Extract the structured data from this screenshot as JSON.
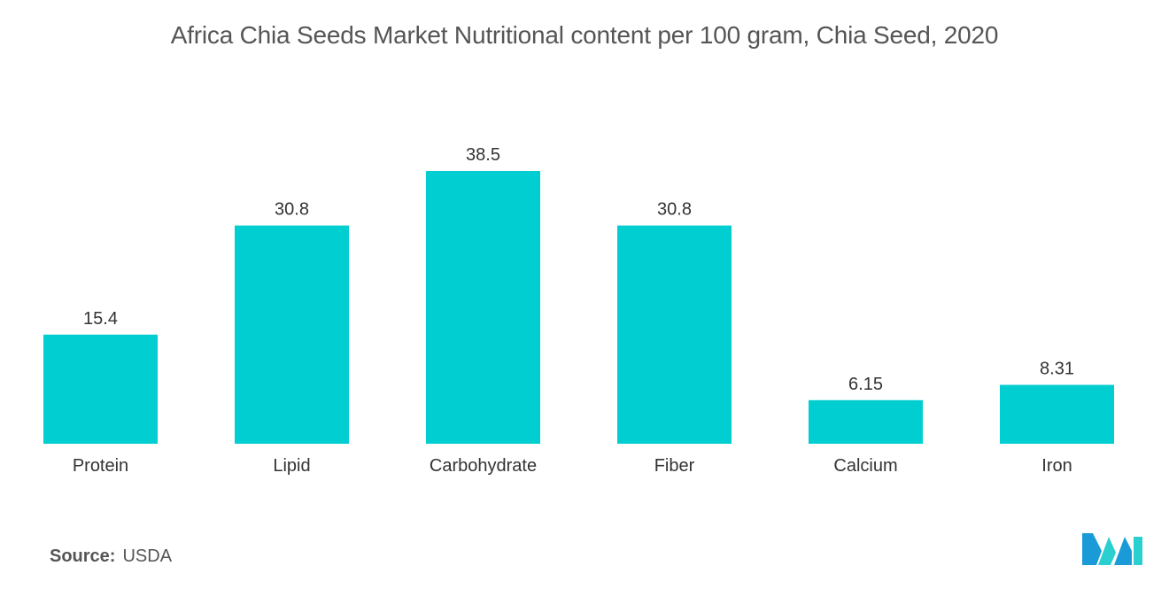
{
  "chart_data": {
    "type": "bar",
    "title": "Africa Chia Seeds Market Nutritional content per 100 gram, Chia Seed, 2020",
    "categories": [
      "Protein",
      "Lipid",
      "Carbohydrate",
      "Fiber",
      "Calcium",
      "Iron"
    ],
    "values": [
      15.4,
      30.8,
      38.5,
      30.8,
      6.15,
      8.31
    ],
    "value_labels": [
      "15.4",
      "30.8",
      "38.5",
      "30.8",
      "6.15",
      "8.31"
    ],
    "xlabel": "",
    "ylabel": "",
    "ylim": [
      0,
      38.5
    ],
    "grid": false,
    "legend": "none",
    "bar_color": "#00CED1"
  },
  "source": {
    "label": "Source:",
    "value": "USDA"
  },
  "logo": {
    "icon": "mordor-intelligence-logo-icon",
    "colors": [
      "#1a9bd7",
      "#2ad0d0"
    ]
  }
}
